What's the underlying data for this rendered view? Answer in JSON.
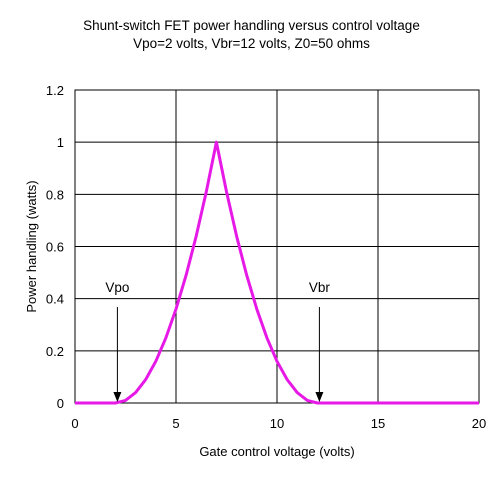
{
  "chart_data": {
    "type": "line",
    "title": "Shunt-switch FET power handling versus control voltage",
    "subtitle": "Vpo=2 volts, Vbr=12 volts, Z0=50 ohms",
    "xlabel": "Gate control voltage (volts)",
    "ylabel": "Power handling (watts)",
    "xlim": [
      0,
      20
    ],
    "ylim": [
      0,
      1.2
    ],
    "xticks": [
      0,
      5,
      10,
      15,
      20
    ],
    "yticks": [
      0,
      0.2,
      0.4,
      0.6,
      0.8,
      1,
      1.2
    ],
    "xtick_labels": [
      "0",
      "5",
      "10",
      "15",
      "20"
    ],
    "ytick_labels": [
      "0",
      "0.2",
      "0.4",
      "0.6",
      "0.8",
      "1",
      "1.2"
    ],
    "grid": true,
    "legend": "none",
    "series": [
      {
        "color": "#e619e6",
        "x": [
          0,
          2,
          2.5,
          3,
          3.5,
          4,
          4.5,
          5,
          5.5,
          6,
          6.5,
          7,
          7.5,
          8,
          8.5,
          9,
          9.5,
          10,
          10.5,
          11,
          11.5,
          12,
          13,
          14,
          15,
          16,
          17,
          18,
          19,
          20
        ],
        "y": [
          0,
          0,
          0.01,
          0.04,
          0.09,
          0.16,
          0.25,
          0.36,
          0.49,
          0.64,
          0.81,
          1.0,
          0.81,
          0.64,
          0.49,
          0.36,
          0.25,
          0.16,
          0.09,
          0.04,
          0.01,
          0,
          0,
          0,
          0,
          0,
          0,
          0,
          0,
          0
        ]
      }
    ],
    "annotations": [
      {
        "label": "Vpo",
        "x": 2
      },
      {
        "label": "Vbr",
        "x": 12
      }
    ]
  }
}
